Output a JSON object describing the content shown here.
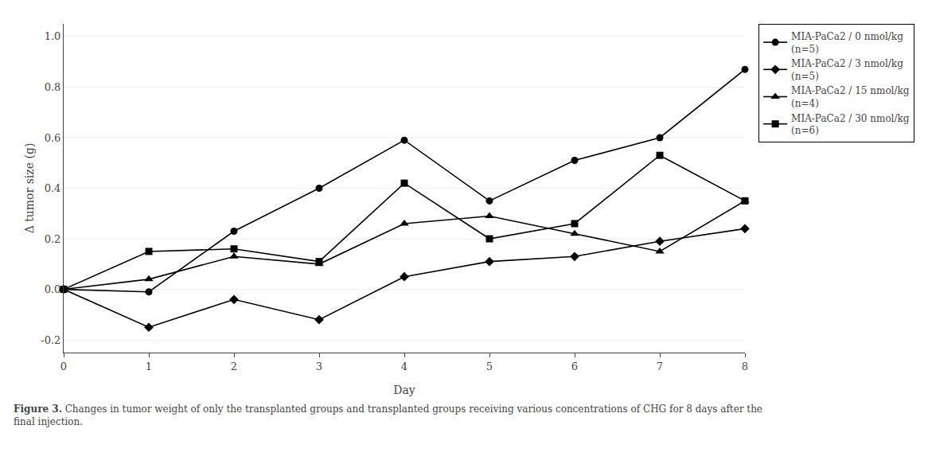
{
  "chart_data": {
    "type": "line",
    "xlabel": "Day",
    "ylabel": "Δ tumor size (g)",
    "x": [
      0,
      1,
      2,
      3,
      4,
      5,
      6,
      7,
      8
    ],
    "xlim": [
      0,
      8
    ],
    "xticks": [
      0,
      1,
      2,
      3,
      4,
      5,
      6,
      7,
      8
    ],
    "ylim": [
      -0.25,
      1.05
    ],
    "yticks": [
      -0.2,
      {
        "value": 0,
        "label": "0.0"
      },
      0.2,
      0.4,
      0.6,
      0.8,
      {
        "value": 1,
        "label": "1.0"
      }
    ],
    "grid": "y",
    "legend": "right",
    "series": [
      {
        "name": "MIA-PaCa2 / 0 nmol/kg\n(n=5)",
        "color": "#000000",
        "marker": "circle",
        "values": [
          0.0,
          -0.01,
          0.23,
          0.4,
          0.59,
          0.35,
          0.51,
          0.6,
          0.87
        ]
      },
      {
        "name": "MIA-PaCa2 / 3 nmol/kg\n(n=5)",
        "color": "#000000",
        "marker": "diamond",
        "values": [
          0.0,
          -0.15,
          -0.04,
          -0.12,
          0.05,
          0.11,
          0.13,
          0.19,
          0.24
        ]
      },
      {
        "name": "MIA-PaCa2 / 15 nmol/kg\n(n=4)",
        "color": "#000000",
        "marker": "triangle",
        "values": [
          0.0,
          0.04,
          0.13,
          0.1,
          0.26,
          0.29,
          0.22,
          0.15,
          0.35
        ]
      },
      {
        "name": "MIA-PaCa2 / 30 nmol/kg\n(n=6)",
        "color": "#000000",
        "marker": "square",
        "values": [
          0.0,
          0.15,
          0.16,
          0.11,
          0.42,
          0.2,
          0.26,
          0.53,
          0.35
        ]
      }
    ],
    "annotations": [
      "Figure 3.",
      "Changes in tumor weight of only the transplanted groups and transplanted groups receiving various concentrations of CHG for 8 days after the\nfinal injection."
    ]
  }
}
